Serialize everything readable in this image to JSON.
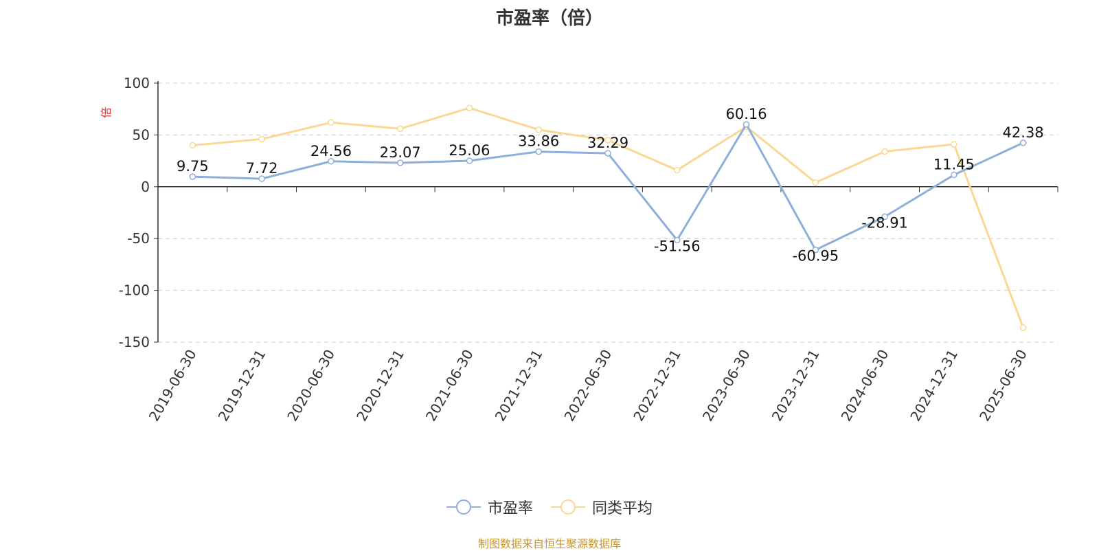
{
  "chart_data": {
    "type": "line",
    "title": "市盈率（倍）",
    "ylabel": "倍",
    "ylim": [
      -150,
      100
    ],
    "yticks": [
      100,
      50,
      0,
      -50,
      -100,
      -150
    ],
    "grid": true,
    "legend_position": "bottom",
    "categories": [
      "2019-06-30",
      "2019-12-31",
      "2020-06-30",
      "2020-12-31",
      "2021-06-30",
      "2021-12-31",
      "2022-06-30",
      "2022-12-31",
      "2023-06-30",
      "2023-12-31",
      "2024-06-30",
      "2024-12-31",
      "2025-06-30"
    ],
    "series": [
      {
        "name": "市盈率",
        "color": "#8eaedc",
        "values": [
          9.75,
          7.72,
          24.56,
          23.07,
          25.06,
          33.86,
          32.29,
          -51.56,
          60.16,
          -60.95,
          -28.91,
          11.45,
          42.38
        ],
        "labels": [
          "9.75",
          "7.72",
          "24.56",
          "23.07",
          "25.06",
          "33.86",
          "32.29",
          "-51.56",
          "60.16",
          "-60.95",
          "-28.91",
          "11.45",
          "42.38"
        ]
      },
      {
        "name": "同类平均",
        "color": "#fad894",
        "values": [
          40,
          46,
          62,
          56,
          76,
          55,
          45,
          16,
          58,
          4,
          34,
          41,
          -136
        ]
      }
    ]
  },
  "source_note": "制图数据来自恒生聚源数据库"
}
